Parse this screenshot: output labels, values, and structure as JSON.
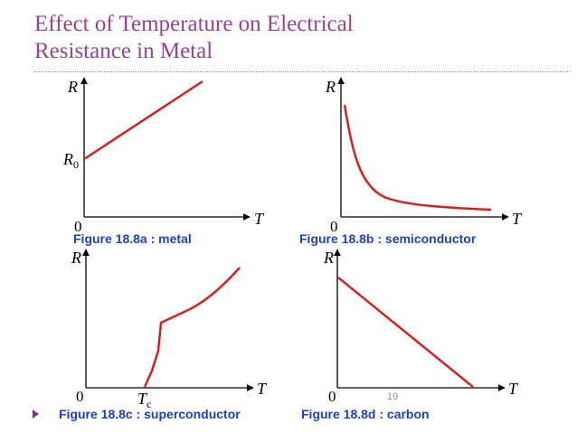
{
  "title_line1": "Effect of Temperature on Electrical",
  "title_line2": "Resistance in Metal",
  "page_number": "19",
  "panels": [
    {
      "y_label": "R",
      "x_label": "T",
      "origin": "0",
      "marker": "R0",
      "marker_main": "R",
      "marker_sub": "0",
      "caption": "Figure  18.8a : metal"
    },
    {
      "y_label": "R",
      "x_label": "T",
      "origin": "0",
      "caption": "Figure  18.8b : semiconductor"
    },
    {
      "y_label": "R",
      "x_label": "T",
      "origin": "0",
      "marker": "Tc",
      "marker_main": "T",
      "marker_sub": "c",
      "caption": "Figure  18.8c : superconductor"
    },
    {
      "y_label": "R",
      "x_label": "T",
      "origin": "0",
      "caption": "Figure  18.8d : carbon"
    }
  ],
  "colors": {
    "title": "#9b3f95",
    "curve": "#d42020",
    "caption": "#1f3fbf",
    "axes": "#000000"
  }
}
